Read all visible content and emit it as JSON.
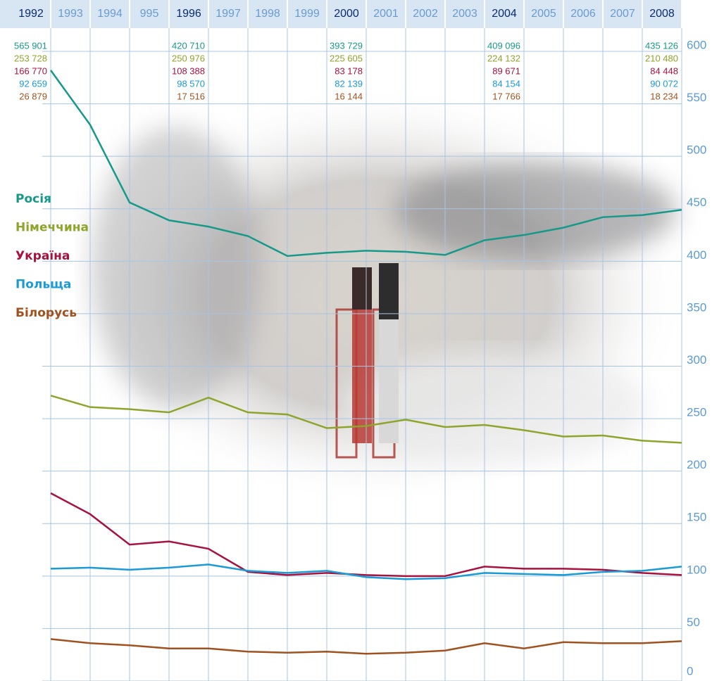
{
  "chart_data": {
    "type": "line",
    "categories": [
      "1992",
      "1993",
      "1994",
      "995",
      "1996",
      "1997",
      "1998",
      "1999",
      "2000",
      "2001",
      "2002",
      "2003",
      "2004",
      "2005",
      "2006",
      "2007",
      "2008"
    ],
    "series": [
      {
        "name": "Росія",
        "color": "#17998a",
        "values": [
          582,
          530,
          456,
          439,
          433,
          424,
          405,
          408,
          410,
          409,
          406,
          420,
          425,
          432,
          442,
          444,
          449
        ],
        "annotations": [
          "565 901",
          null,
          null,
          null,
          "420 710",
          null,
          null,
          null,
          "393 729",
          null,
          null,
          null,
          "409 096",
          null,
          null,
          null,
          "435 126"
        ]
      },
      {
        "name": "Німеччина",
        "color": "#8ea52b",
        "values": [
          272,
          261,
          259,
          256,
          270,
          256,
          254,
          241,
          243,
          249,
          242,
          244,
          239,
          233,
          234,
          229,
          227
        ],
        "annotations": [
          "253 728",
          null,
          null,
          null,
          "250 976",
          null,
          null,
          null,
          "225 605",
          null,
          null,
          null,
          "224 132",
          null,
          null,
          null,
          "210 480"
        ]
      },
      {
        "name": "Україна",
        "color": "#a8123e",
        "values": [
          179,
          159,
          130,
          133,
          126,
          104,
          101,
          103,
          101,
          100,
          100,
          109,
          107,
          107,
          106,
          103,
          101
        ],
        "annotations": [
          "166 770",
          null,
          null,
          null,
          "108 388",
          null,
          null,
          null,
          "83 178",
          null,
          null,
          null,
          "89 671",
          null,
          null,
          null,
          "84 448"
        ]
      },
      {
        "name": "Польща",
        "color": "#1a9ad6",
        "values": [
          107,
          108,
          106,
          108,
          111,
          105,
          103,
          105,
          99,
          97,
          98,
          103,
          102,
          101,
          104,
          105,
          109
        ],
        "annotations": [
          "92 659",
          null,
          null,
          null,
          "98 570",
          null,
          null,
          null,
          "82 139",
          null,
          null,
          null,
          "84 154",
          null,
          null,
          null,
          "90 072"
        ]
      },
      {
        "name": "Білорусь",
        "color": "#a0521e",
        "values": [
          40,
          36,
          34,
          31,
          31,
          28,
          27,
          28,
          26,
          27,
          29,
          36,
          31,
          37,
          36,
          36,
          38
        ],
        "annotations": [
          "26 879",
          null,
          null,
          null,
          "17 516",
          null,
          null,
          null,
          "16 144",
          null,
          null,
          null,
          "17 766",
          null,
          null,
          null,
          "18 234"
        ]
      }
    ],
    "ylim": [
      0,
      600
    ],
    "yticks": [
      0,
      50,
      100,
      150,
      200,
      250,
      300,
      350,
      400,
      450,
      500,
      550,
      600
    ],
    "grid": true,
    "legend": "left"
  }
}
